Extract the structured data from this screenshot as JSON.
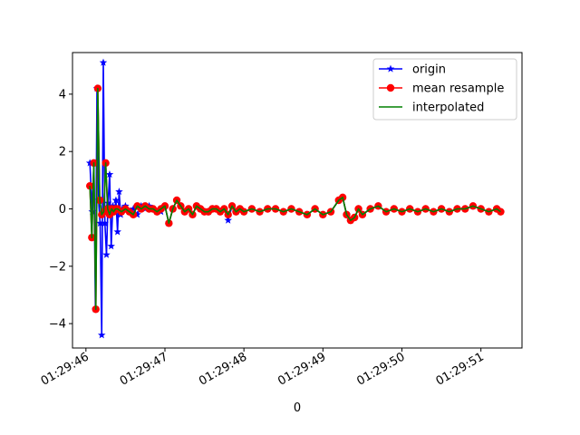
{
  "chart_data": {
    "type": "line",
    "title": "",
    "xlabel": "0",
    "ylabel": "",
    "x_unit": "seconds past 01:29:46",
    "xlim": [
      -0.17,
      5.52
    ],
    "ylim": [
      -4.85,
      5.45
    ],
    "x_ticks": [
      {
        "value": 0,
        "label": "01:29:46"
      },
      {
        "value": 1,
        "label": "01:29:47"
      },
      {
        "value": 2,
        "label": "01:29:48"
      },
      {
        "value": 3,
        "label": "01:29:49"
      },
      {
        "value": 4,
        "label": "01:29:50"
      },
      {
        "value": 5,
        "label": "01:29:51"
      }
    ],
    "y_ticks": [
      {
        "value": -4,
        "label": "−4"
      },
      {
        "value": -2,
        "label": "−2"
      },
      {
        "value": 0,
        "label": "0"
      },
      {
        "value": 2,
        "label": "2"
      },
      {
        "value": 4,
        "label": "4"
      }
    ],
    "legend_position": "top-right",
    "grid": false,
    "series": [
      {
        "name": "origin",
        "color": "#0000ff",
        "marker": "star",
        "x": [
          0.05,
          0.08,
          0.1,
          0.12,
          0.14,
          0.16,
          0.18,
          0.2,
          0.22,
          0.24,
          0.26,
          0.28,
          0.3,
          0.32,
          0.34,
          0.36,
          0.38,
          0.4,
          0.42,
          0.44,
          0.46,
          0.5,
          0.55,
          0.6,
          0.65,
          0.7,
          0.75,
          0.8,
          0.85,
          0.9,
          0.95,
          1.0,
          1.05,
          1.1,
          1.15,
          1.2,
          1.25,
          1.3,
          1.35,
          1.4,
          1.45,
          1.5,
          1.55,
          1.6,
          1.65,
          1.7,
          1.75,
          1.8,
          1.85,
          1.9,
          1.95,
          2.0,
          2.1,
          2.2,
          2.3,
          2.4,
          2.5,
          2.6,
          2.7,
          2.8,
          2.9,
          3.0,
          3.1,
          3.2,
          3.25,
          3.3,
          3.35,
          3.4,
          3.45,
          3.5,
          3.6,
          3.7,
          3.8,
          3.9,
          4.0,
          4.1,
          4.2,
          4.3,
          4.4,
          4.5,
          4.6,
          4.7,
          4.8,
          4.9,
          5.0,
          5.1,
          5.2,
          5.25
        ],
        "values": [
          1.6,
          -0.1,
          1.6,
          -3.5,
          4.2,
          0.3,
          -0.5,
          -4.4,
          5.1,
          -0.5,
          -1.6,
          0.2,
          1.2,
          -1.3,
          0.1,
          -0.1,
          0.3,
          -0.8,
          0.6,
          -0.2,
          0.0,
          0.1,
          -0.1,
          0.0,
          -0.2,
          0.1,
          0.0,
          0.1,
          0.0,
          -0.1,
          -0.1,
          0.1,
          -0.5,
          0.0,
          0.3,
          0.1,
          -0.1,
          0.0,
          -0.2,
          0.1,
          0.0,
          -0.1,
          -0.1,
          0.0,
          0.0,
          -0.1,
          0.0,
          -0.4,
          0.1,
          -0.1,
          0.0,
          -0.1,
          0.0,
          -0.1,
          0.0,
          0.0,
          -0.1,
          0.0,
          -0.1,
          -0.2,
          0.0,
          -0.2,
          -0.1,
          0.3,
          0.4,
          -0.2,
          -0.4,
          -0.3,
          0.0,
          -0.2,
          0.0,
          0.1,
          -0.1,
          0.0,
          -0.1,
          0.0,
          -0.1,
          0.0,
          -0.1,
          0.0,
          -0.1,
          0.0,
          0.0,
          0.1,
          0.0,
          -0.1,
          0.0,
          -0.1
        ]
      },
      {
        "name": "mean resample",
        "color": "#ff0000",
        "marker": "circle",
        "x": [
          0.05,
          0.075,
          0.1,
          0.125,
          0.15,
          0.175,
          0.2,
          0.225,
          0.25,
          0.275,
          0.3,
          0.325,
          0.35,
          0.375,
          0.4,
          0.45,
          0.5,
          0.55,
          0.6,
          0.65,
          0.7,
          0.75,
          0.8,
          0.85,
          0.9,
          0.95,
          1.0,
          1.05,
          1.1,
          1.15,
          1.2,
          1.25,
          1.3,
          1.35,
          1.4,
          1.45,
          1.5,
          1.55,
          1.6,
          1.65,
          1.7,
          1.75,
          1.8,
          1.85,
          1.9,
          1.95,
          2.0,
          2.1,
          2.2,
          2.3,
          2.4,
          2.5,
          2.6,
          2.7,
          2.8,
          2.9,
          3.0,
          3.1,
          3.2,
          3.25,
          3.3,
          3.35,
          3.4,
          3.45,
          3.5,
          3.6,
          3.7,
          3.8,
          3.9,
          4.0,
          4.1,
          4.2,
          4.3,
          4.4,
          4.5,
          4.6,
          4.7,
          4.8,
          4.9,
          5.0,
          5.1,
          5.2,
          5.25
        ],
        "values": [
          0.8,
          -1.0,
          1.6,
          -3.5,
          4.2,
          0.3,
          -0.2,
          -0.1,
          1.6,
          0.0,
          -0.2,
          0.0,
          -0.1,
          0.0,
          0.0,
          -0.1,
          0.0,
          -0.1,
          -0.2,
          0.1,
          0.0,
          0.1,
          0.0,
          0.0,
          -0.1,
          0.0,
          0.1,
          -0.5,
          0.0,
          0.3,
          0.1,
          -0.1,
          0.0,
          -0.2,
          0.1,
          0.0,
          -0.1,
          -0.1,
          0.0,
          0.0,
          -0.1,
          0.0,
          -0.2,
          0.1,
          -0.1,
          0.0,
          -0.1,
          0.0,
          -0.1,
          0.0,
          0.0,
          -0.1,
          0.0,
          -0.1,
          -0.2,
          0.0,
          -0.2,
          -0.1,
          0.3,
          0.4,
          -0.2,
          -0.4,
          -0.3,
          0.0,
          -0.2,
          0.0,
          0.1,
          -0.1,
          0.0,
          -0.1,
          0.0,
          -0.1,
          0.0,
          -0.1,
          0.0,
          -0.1,
          0.0,
          0.0,
          0.1,
          0.0,
          -0.1,
          0.0,
          -0.1
        ]
      },
      {
        "name": "interpolated",
        "color": "#008000",
        "marker": "none",
        "x": [
          0.05,
          0.075,
          0.1,
          0.125,
          0.15,
          0.175,
          0.2,
          0.225,
          0.25,
          0.275,
          0.3,
          0.325,
          0.35,
          0.375,
          0.4,
          0.45,
          0.5,
          0.55,
          0.6,
          0.65,
          0.7,
          0.75,
          0.8,
          0.85,
          0.9,
          0.95,
          1.0,
          1.05,
          1.1,
          1.15,
          1.2,
          1.25,
          1.3,
          1.35,
          1.4,
          1.45,
          1.5,
          1.55,
          1.6,
          1.65,
          1.7,
          1.75,
          1.8,
          1.85,
          1.9,
          1.95,
          2.0,
          2.1,
          2.2,
          2.3,
          2.4,
          2.5,
          2.6,
          2.7,
          2.8,
          2.9,
          3.0,
          3.1,
          3.2,
          3.25,
          3.3,
          3.35,
          3.4,
          3.45,
          3.5,
          3.6,
          3.7,
          3.8,
          3.9,
          4.0,
          4.1,
          4.2,
          4.3,
          4.4,
          4.5,
          4.6,
          4.7,
          4.8,
          4.9,
          5.0,
          5.1,
          5.2,
          5.25
        ],
        "values": [
          0.8,
          -1.0,
          1.6,
          -3.5,
          4.2,
          0.3,
          -0.2,
          -0.1,
          1.6,
          0.0,
          -0.2,
          0.0,
          -0.1,
          0.0,
          0.0,
          -0.1,
          0.0,
          -0.1,
          -0.2,
          0.1,
          0.0,
          0.1,
          0.0,
          0.0,
          -0.1,
          0.0,
          0.1,
          -0.5,
          0.0,
          0.3,
          0.1,
          -0.1,
          0.0,
          -0.2,
          0.1,
          0.0,
          -0.1,
          -0.1,
          0.0,
          0.0,
          -0.1,
          0.0,
          -0.2,
          0.1,
          -0.1,
          0.0,
          -0.1,
          0.0,
          -0.1,
          0.0,
          0.0,
          -0.1,
          0.0,
          -0.1,
          -0.2,
          0.0,
          -0.2,
          -0.1,
          0.3,
          0.4,
          -0.2,
          -0.4,
          -0.3,
          0.0,
          -0.2,
          0.0,
          0.1,
          -0.1,
          0.0,
          -0.1,
          0.0,
          -0.1,
          0.0,
          -0.1,
          0.0,
          -0.1,
          0.0,
          0.0,
          0.1,
          0.0,
          -0.1,
          0.0,
          -0.1
        ]
      }
    ]
  }
}
